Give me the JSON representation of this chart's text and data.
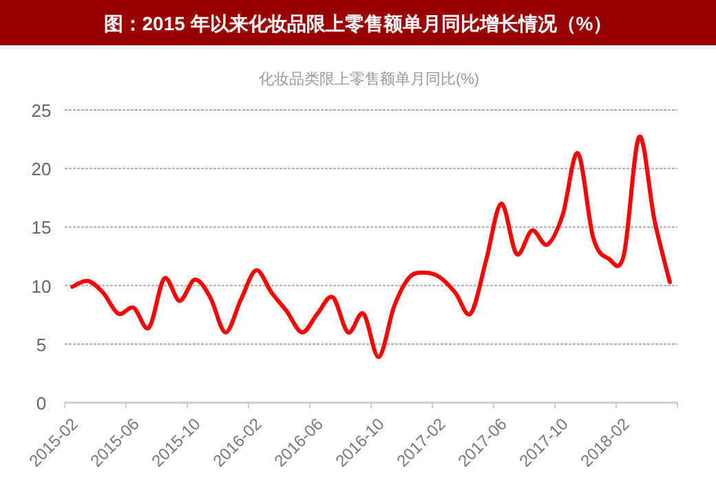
{
  "chart_data": {
    "type": "line",
    "title": "图：2015 年以来化妆品限上零售额单月同比增长情况（%）",
    "subtitle": "化妆品类限上零售额单月同比(%)",
    "categories": [
      "2015-02",
      null,
      null,
      null,
      "2015-06",
      null,
      null,
      null,
      "2015-10",
      null,
      null,
      null,
      "2016-02",
      null,
      null,
      null,
      "2016-06",
      null,
      null,
      null,
      "2016-10",
      null,
      null,
      null,
      "2017-02",
      null,
      null,
      null,
      "2017-06",
      null,
      null,
      null,
      "2017-10",
      null,
      null,
      null,
      "2018-02",
      null,
      null,
      null
    ],
    "series": [
      {
        "color": "#ff0000",
        "values": [
          9.9,
          10.4,
          9.4,
          7.6,
          8.1,
          6.4,
          10.6,
          8.7,
          10.5,
          9.0,
          6.0,
          8.8,
          11.3,
          9.4,
          7.8,
          6.0,
          7.6,
          9.0,
          6.0,
          7.6,
          3.9,
          8.2,
          10.7,
          11.1,
          10.7,
          9.4,
          7.6,
          12.1,
          17.0,
          12.7,
          14.7,
          13.5,
          16.0,
          21.3,
          14.1,
          12.3,
          12.6,
          22.7,
          15.6,
          10.3
        ]
      }
    ],
    "ylim": [
      0,
      25
    ],
    "yticks": [
      0,
      5,
      10,
      15,
      20,
      25
    ],
    "grid": "y",
    "marker": "none",
    "line_style": "solid"
  }
}
